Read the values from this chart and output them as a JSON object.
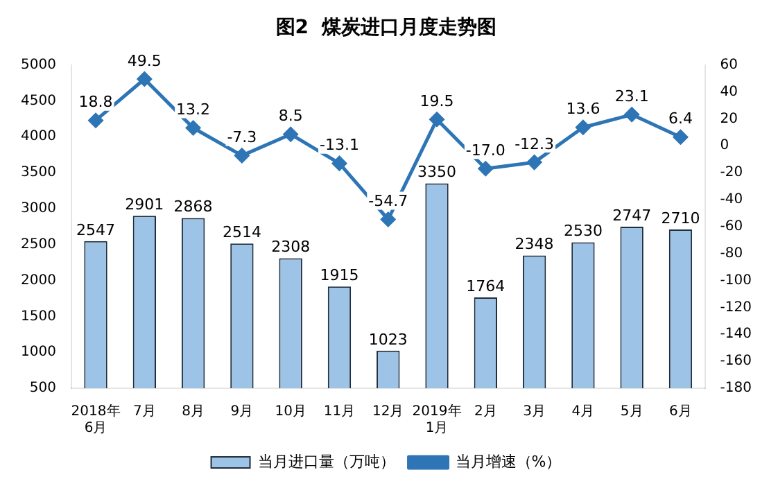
{
  "chart_data": {
    "type": "bar",
    "title": "图2  煤炭进口月度走势图",
    "categories": [
      "2018年\n6月",
      "7月",
      "8月",
      "9月",
      "10月",
      "11月",
      "12月",
      "2019年\n1月",
      "2月",
      "3月",
      "4月",
      "5月",
      "6月"
    ],
    "series": [
      {
        "name": "当月进口量（万吨）",
        "color": "#9dc3e6",
        "values": [
          2547,
          2901,
          2868,
          2514,
          2308,
          1915,
          1023,
          3350,
          1764,
          2348,
          2530,
          2747,
          2710
        ]
      },
      {
        "name": "当月增速（%）",
        "type": "line",
        "axis": "y2",
        "color": "#2e75b6",
        "values": [
          18.8,
          49.5,
          13.2,
          -7.3,
          8.5,
          -13.1,
          -54.7,
          19.5,
          -17.0,
          -12.3,
          13.6,
          23.1,
          6.4
        ],
        "value_labels": [
          "18.8",
          "49.5",
          "13.2",
          "-7.3",
          "8.5",
          "-13.1",
          "-54.7",
          "19.5",
          "-17.0",
          "-12.3",
          "13.6",
          "23.1",
          "6.4"
        ]
      }
    ],
    "ylim": [
      500,
      5000
    ],
    "yticks": [
      500,
      1000,
      1500,
      2000,
      2500,
      3000,
      3500,
      4000,
      4500,
      5000
    ],
    "y2lim": [
      -180,
      60
    ],
    "y2ticks": [
      -180,
      -160,
      -140,
      -120,
      -100,
      -80,
      -60,
      -40,
      -20,
      0,
      20,
      40,
      60
    ],
    "data_labels": true,
    "grid": false,
    "legend": "bottom",
    "marker": "diamond",
    "line_style": "solid"
  }
}
